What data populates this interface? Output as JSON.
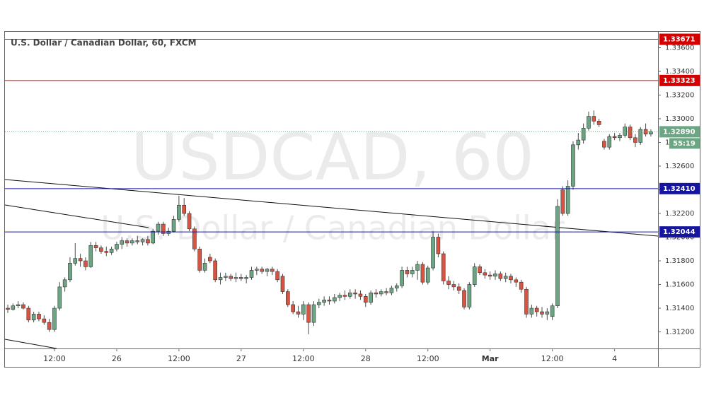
{
  "chart_data": {
    "type": "candlestick",
    "title": "U.S. Dollar / Canadian Dollar, 60, FXCM",
    "watermark": {
      "symbol": "USDCAD, 60",
      "description": "U.S. Dollar / Canadian Dollar"
    },
    "up_color": "#6ba583",
    "down_color": "#d75442",
    "wick_color": "#4a4a4a",
    "ylim": [
      1.3106,
      1.3374
    ],
    "yticks": [
      {
        "value": 1.312,
        "label": "1.31200"
      },
      {
        "value": 1.314,
        "label": "1.31400"
      },
      {
        "value": 1.316,
        "label": "1.31600"
      },
      {
        "value": 1.318,
        "label": "1.31800"
      },
      {
        "value": 1.32,
        "label": "1.32000"
      },
      {
        "value": 1.322,
        "label": "1.32200"
      },
      {
        "value": 1.324,
        "label": "1.32400"
      },
      {
        "value": 1.326,
        "label": "1.32600"
      },
      {
        "value": 1.328,
        "label": "1.32800"
      },
      {
        "value": 1.33,
        "label": "1.33000"
      },
      {
        "value": 1.332,
        "label": "1.33200"
      },
      {
        "value": 1.334,
        "label": "1.33400"
      },
      {
        "value": 1.336,
        "label": "1.33600"
      }
    ],
    "levels": [
      {
        "value": 1.33671,
        "label": "1.33671",
        "color": "#d40000"
      },
      {
        "value": 1.33323,
        "label": "1.33323",
        "color": "#d40000"
      },
      {
        "value": 1.3241,
        "label": "1.32410",
        "color": "#1515a0"
      },
      {
        "value": 1.32044,
        "label": "1.32044",
        "color": "#1515a0"
      }
    ],
    "current": {
      "value": 1.3289,
      "label": "1.32890",
      "countdown": "55:19",
      "color": "#6ba583"
    },
    "categories": [
      null,
      null,
      null,
      null,
      null,
      null,
      null,
      null,
      null,
      "12:00",
      null,
      null,
      null,
      null,
      null,
      null,
      null,
      null,
      null,
      null,
      null,
      "26",
      null,
      null,
      null,
      null,
      null,
      null,
      null,
      null,
      null,
      null,
      null,
      "12:00",
      null,
      null,
      null,
      null,
      null,
      null,
      null,
      null,
      null,
      null,
      null,
      "27",
      null,
      null,
      null,
      null,
      null,
      null,
      null,
      null,
      null,
      null,
      null,
      "12:00",
      null,
      null,
      null,
      null,
      null,
      null,
      null,
      null,
      null,
      null,
      null,
      "28",
      null,
      null,
      null,
      null,
      null,
      null,
      null,
      null,
      null,
      null,
      null,
      "12:00",
      null,
      null,
      null,
      null,
      null,
      null,
      null,
      null,
      null,
      null,
      null,
      "Mar",
      null,
      null,
      null,
      null,
      null,
      null,
      null,
      null,
      null,
      null,
      null,
      "12:00",
      null,
      null,
      null,
      null,
      null,
      null,
      null,
      null,
      null,
      null,
      null,
      "4",
      null,
      null,
      null,
      null,
      null,
      null,
      null
    ],
    "ohlc": [
      [
        1.314,
        1.3143,
        1.3136,
        1.3139
      ],
      [
        1.3139,
        1.3144,
        1.3138,
        1.3142
      ],
      [
        1.3142,
        1.3146,
        1.314,
        1.3143
      ],
      [
        1.3143,
        1.3145,
        1.3139,
        1.314
      ],
      [
        1.314,
        1.3142,
        1.3128,
        1.313
      ],
      [
        1.313,
        1.3137,
        1.3128,
        1.3135
      ],
      [
        1.3135,
        1.3137,
        1.3129,
        1.3131
      ],
      [
        1.3131,
        1.3134,
        1.3126,
        1.3128
      ],
      [
        1.3128,
        1.3131,
        1.312,
        1.3122
      ],
      [
        1.3122,
        1.3142,
        1.312,
        1.314
      ],
      [
        1.314,
        1.3162,
        1.3138,
        1.3158
      ],
      [
        1.3158,
        1.3166,
        1.3154,
        1.3164
      ],
      [
        1.3164,
        1.3183,
        1.3162,
        1.3178
      ],
      [
        1.3178,
        1.3195,
        1.3176,
        1.3182
      ],
      [
        1.3182,
        1.3186,
        1.3175,
        1.318
      ],
      [
        1.318,
        1.3183,
        1.3172,
        1.3175
      ],
      [
        1.3175,
        1.3196,
        1.3174,
        1.3193
      ],
      [
        1.3193,
        1.3196,
        1.3188,
        1.3191
      ],
      [
        1.3191,
        1.3193,
        1.3186,
        1.3188
      ],
      [
        1.3188,
        1.3192,
        1.3184,
        1.3187
      ],
      [
        1.3187,
        1.3192,
        1.3185,
        1.319
      ],
      [
        1.319,
        1.3196,
        1.3188,
        1.3194
      ],
      [
        1.3194,
        1.32,
        1.319,
        1.3197
      ],
      [
        1.3197,
        1.3199,
        1.3192,
        1.3195
      ],
      [
        1.3195,
        1.3199,
        1.3193,
        1.3197
      ],
      [
        1.3197,
        1.3201,
        1.3194,
        1.3196
      ],
      [
        1.3196,
        1.3199,
        1.3193,
        1.3198
      ],
      [
        1.3198,
        1.3201,
        1.3193,
        1.3195
      ],
      [
        1.3195,
        1.3207,
        1.3194,
        1.3205
      ],
      [
        1.3205,
        1.3213,
        1.3202,
        1.3211
      ],
      [
        1.3211,
        1.3213,
        1.3201,
        1.3203
      ],
      [
        1.3203,
        1.3208,
        1.3201,
        1.3205
      ],
      [
        1.3205,
        1.3218,
        1.3204,
        1.3215
      ],
      [
        1.3215,
        1.3235,
        1.3213,
        1.3227
      ],
      [
        1.3227,
        1.3233,
        1.3218,
        1.322
      ],
      [
        1.322,
        1.3222,
        1.3205,
        1.3207
      ],
      [
        1.3207,
        1.3209,
        1.3188,
        1.319
      ],
      [
        1.319,
        1.3192,
        1.317,
        1.3172
      ],
      [
        1.3172,
        1.3182,
        1.317,
        1.3178
      ],
      [
        1.3183,
        1.3186,
        1.3178,
        1.318
      ],
      [
        1.318,
        1.3182,
        1.3162,
        1.3164
      ],
      [
        1.3164,
        1.317,
        1.316,
        1.3166
      ],
      [
        1.3166,
        1.317,
        1.3163,
        1.3167
      ],
      [
        1.3167,
        1.3169,
        1.3163,
        1.3165
      ],
      [
        1.3165,
        1.317,
        1.3162,
        1.3166
      ],
      [
        1.3166,
        1.3169,
        1.3163,
        1.3165
      ],
      [
        1.3165,
        1.3168,
        1.3161,
        1.3166
      ],
      [
        1.3166,
        1.3175,
        1.3164,
        1.3172
      ],
      [
        1.3172,
        1.3175,
        1.3168,
        1.3173
      ],
      [
        1.3173,
        1.3175,
        1.3169,
        1.3171
      ],
      [
        1.3171,
        1.3174,
        1.3167,
        1.3173
      ],
      [
        1.3173,
        1.3175,
        1.3168,
        1.3171
      ],
      [
        1.3171,
        1.3173,
        1.3162,
        1.3164
      ],
      [
        1.3167,
        1.3169,
        1.3152,
        1.3154
      ],
      [
        1.3154,
        1.3156,
        1.3141,
        1.3143
      ],
      [
        1.3143,
        1.3146,
        1.3135,
        1.3137
      ],
      [
        1.3137,
        1.3142,
        1.3132,
        1.3135
      ],
      [
        1.3135,
        1.3146,
        1.313,
        1.3143
      ],
      [
        1.3143,
        1.3145,
        1.3118,
        1.3128
      ],
      [
        1.3128,
        1.3146,
        1.3125,
        1.3143
      ],
      [
        1.3143,
        1.3148,
        1.314,
        1.3145
      ],
      [
        1.3145,
        1.315,
        1.3142,
        1.3147
      ],
      [
        1.3147,
        1.315,
        1.3143,
        1.3146
      ],
      [
        1.3146,
        1.3152,
        1.3144,
        1.3149
      ],
      [
        1.3149,
        1.3153,
        1.3146,
        1.3151
      ],
      [
        1.3151,
        1.3155,
        1.3147,
        1.315
      ],
      [
        1.315,
        1.3156,
        1.3148,
        1.3153
      ],
      [
        1.3153,
        1.3156,
        1.3148,
        1.3152
      ],
      [
        1.3152,
        1.3155,
        1.3147,
        1.315
      ],
      [
        1.315,
        1.3152,
        1.3141,
        1.3145
      ],
      [
        1.3145,
        1.3155,
        1.3143,
        1.3153
      ],
      [
        1.3153,
        1.3156,
        1.3149,
        1.3152
      ],
      [
        1.3152,
        1.3156,
        1.315,
        1.3154
      ],
      [
        1.3154,
        1.3157,
        1.3151,
        1.3153
      ],
      [
        1.3153,
        1.3159,
        1.3151,
        1.3157
      ],
      [
        1.3157,
        1.3161,
        1.3154,
        1.3159
      ],
      [
        1.3159,
        1.3175,
        1.3157,
        1.3172
      ],
      [
        1.3172,
        1.3175,
        1.3166,
        1.3169
      ],
      [
        1.3169,
        1.3175,
        1.3166,
        1.3172
      ],
      [
        1.3172,
        1.318,
        1.3164,
        1.3177
      ],
      [
        1.3177,
        1.3179,
        1.316,
        1.3162
      ],
      [
        1.3162,
        1.3176,
        1.316,
        1.3174
      ],
      [
        1.3174,
        1.3205,
        1.3172,
        1.32
      ],
      [
        1.32,
        1.3203,
        1.3183,
        1.3186
      ],
      [
        1.3186,
        1.3188,
        1.316,
        1.3163
      ],
      [
        1.3163,
        1.3167,
        1.3156,
        1.316
      ],
      [
        1.316,
        1.3163,
        1.3155,
        1.3158
      ],
      [
        1.3158,
        1.3161,
        1.3152,
        1.3155
      ],
      [
        1.3155,
        1.3157,
        1.3139,
        1.3141
      ],
      [
        1.3141,
        1.3162,
        1.3139,
        1.316
      ],
      [
        1.316,
        1.3178,
        1.3158,
        1.3175
      ],
      [
        1.3175,
        1.3177,
        1.3168,
        1.317
      ],
      [
        1.317,
        1.3173,
        1.3165,
        1.3168
      ],
      [
        1.3168,
        1.3171,
        1.3164,
        1.3167
      ],
      [
        1.3167,
        1.3172,
        1.3164,
        1.3169
      ],
      [
        1.3169,
        1.3171,
        1.3163,
        1.3165
      ],
      [
        1.3165,
        1.317,
        1.3162,
        1.3167
      ],
      [
        1.3167,
        1.3169,
        1.3161,
        1.3164
      ],
      [
        1.3164,
        1.3166,
        1.3158,
        1.3162
      ],
      [
        1.3162,
        1.3164,
        1.3153,
        1.3156
      ],
      [
        1.3156,
        1.3158,
        1.3132,
        1.3135
      ],
      [
        1.3135,
        1.3143,
        1.3132,
        1.314
      ],
      [
        1.314,
        1.3142,
        1.3133,
        1.3137
      ],
      [
        1.3137,
        1.3141,
        1.3132,
        1.3135
      ],
      [
        1.3135,
        1.314,
        1.313,
        1.3137
      ],
      [
        1.3133,
        1.3144,
        1.313,
        1.3142
      ],
      [
        1.3142,
        1.3232,
        1.314,
        1.3226
      ],
      [
        1.324,
        1.3243,
        1.3218,
        1.322
      ],
      [
        1.322,
        1.3248,
        1.3218,
        1.3243
      ],
      [
        1.3243,
        1.3281,
        1.324,
        1.3278
      ],
      [
        1.3278,
        1.3288,
        1.3274,
        1.3282
      ],
      [
        1.3282,
        1.3296,
        1.3279,
        1.3292
      ],
      [
        1.3292,
        1.3306,
        1.329,
        1.3302
      ],
      [
        1.3302,
        1.3307,
        1.3295,
        1.3298
      ],
      [
        1.3298,
        1.33,
        1.3293,
        1.3295
      ],
      [
        1.3281,
        1.3283,
        1.3274,
        1.3276
      ],
      [
        1.3276,
        1.3287,
        1.3274,
        1.3285
      ],
      [
        1.3285,
        1.3288,
        1.3282,
        1.3284
      ],
      [
        1.3284,
        1.3288,
        1.3281,
        1.3286
      ],
      [
        1.3286,
        1.3296,
        1.3284,
        1.3293
      ],
      [
        1.3293,
        1.3295,
        1.3282,
        1.3284
      ],
      [
        1.3284,
        1.3287,
        1.3276,
        1.328
      ],
      [
        1.328,
        1.3293,
        1.3278,
        1.3291
      ],
      [
        1.3291,
        1.3296,
        1.3285,
        1.3287
      ],
      [
        1.3287,
        1.3291,
        1.3285,
        1.3289
      ]
    ]
  }
}
